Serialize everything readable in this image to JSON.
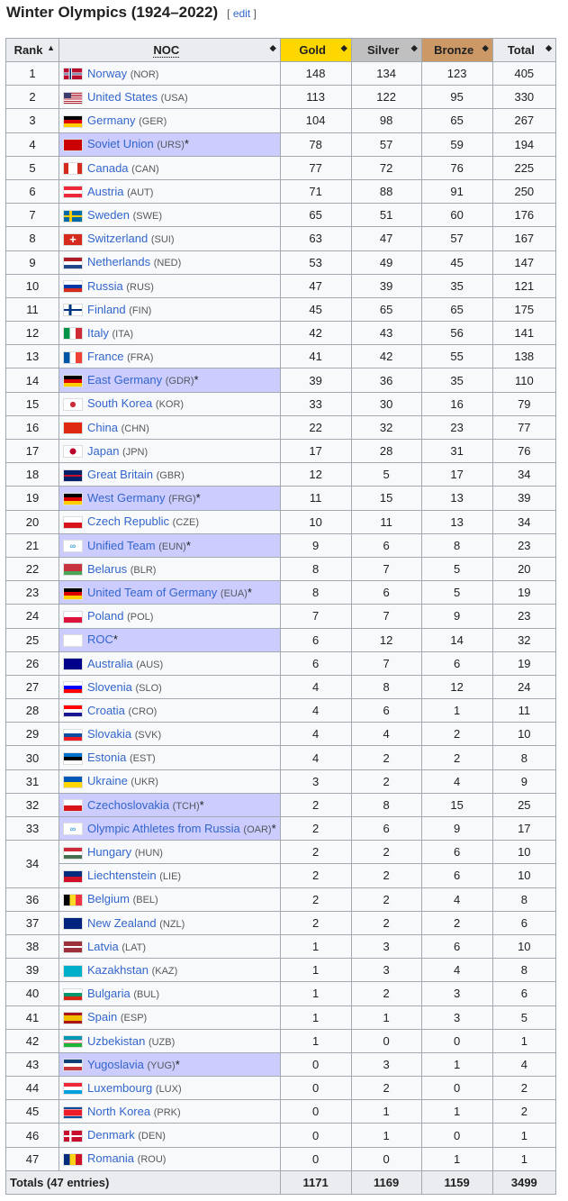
{
  "heading": {
    "title": "Winter Olympics (1924–2022)",
    "edit": "edit"
  },
  "headers": {
    "rank": "Rank",
    "noc": "NOC",
    "gold": "Gold",
    "silver": "Silver",
    "bronze": "Bronze",
    "total": "Total"
  },
  "colors": {
    "gold": "#ffd700",
    "silver": "#c0c0c0",
    "bronze": "#cc9966",
    "defunct": "#ccccff",
    "link": "#3366cc"
  },
  "rows": [
    {
      "rank": "1",
      "name": "Norway",
      "code": "(NOR)",
      "g": 148,
      "s": 134,
      "b": 123,
      "t": 405
    },
    {
      "rank": "2",
      "name": "United States",
      "code": "(USA)",
      "g": 113,
      "s": 122,
      "b": 95,
      "t": 330
    },
    {
      "rank": "3",
      "name": "Germany",
      "code": "(GER)",
      "g": 104,
      "s": 98,
      "b": 65,
      "t": 267
    },
    {
      "rank": "4",
      "name": "Soviet Union",
      "code": "(URS)",
      "g": 78,
      "s": 57,
      "b": 59,
      "t": 194,
      "defunct": true
    },
    {
      "rank": "5",
      "name": "Canada",
      "code": "(CAN)",
      "g": 77,
      "s": 72,
      "b": 76,
      "t": 225
    },
    {
      "rank": "6",
      "name": "Austria",
      "code": "(AUT)",
      "g": 71,
      "s": 88,
      "b": 91,
      "t": 250
    },
    {
      "rank": "7",
      "name": "Sweden",
      "code": "(SWE)",
      "g": 65,
      "s": 51,
      "b": 60,
      "t": 176
    },
    {
      "rank": "8",
      "name": "Switzerland",
      "code": "(SUI)",
      "g": 63,
      "s": 47,
      "b": 57,
      "t": 167
    },
    {
      "rank": "9",
      "name": "Netherlands",
      "code": "(NED)",
      "g": 53,
      "s": 49,
      "b": 45,
      "t": 147
    },
    {
      "rank": "10",
      "name": "Russia",
      "code": "(RUS)",
      "g": 47,
      "s": 39,
      "b": 35,
      "t": 121
    },
    {
      "rank": "11",
      "name": "Finland",
      "code": "(FIN)",
      "g": 45,
      "s": 65,
      "b": 65,
      "t": 175
    },
    {
      "rank": "12",
      "name": "Italy",
      "code": "(ITA)",
      "g": 42,
      "s": 43,
      "b": 56,
      "t": 141
    },
    {
      "rank": "13",
      "name": "France",
      "code": "(FRA)",
      "g": 41,
      "s": 42,
      "b": 55,
      "t": 138
    },
    {
      "rank": "14",
      "name": "East Germany",
      "code": "(GDR)",
      "g": 39,
      "s": 36,
      "b": 35,
      "t": 110,
      "defunct": true
    },
    {
      "rank": "15",
      "name": "South Korea",
      "code": "(KOR)",
      "g": 33,
      "s": 30,
      "b": 16,
      "t": 79
    },
    {
      "rank": "16",
      "name": "China",
      "code": "(CHN)",
      "g": 22,
      "s": 32,
      "b": 23,
      "t": 77
    },
    {
      "rank": "17",
      "name": "Japan",
      "code": "(JPN)",
      "g": 17,
      "s": 28,
      "b": 31,
      "t": 76
    },
    {
      "rank": "18",
      "name": "Great Britain",
      "code": "(GBR)",
      "g": 12,
      "s": 5,
      "b": 17,
      "t": 34
    },
    {
      "rank": "19",
      "name": "West Germany",
      "code": "(FRG)",
      "g": 11,
      "s": 15,
      "b": 13,
      "t": 39,
      "defunct": true
    },
    {
      "rank": "20",
      "name": "Czech Republic",
      "code": "(CZE)",
      "g": 10,
      "s": 11,
      "b": 13,
      "t": 34
    },
    {
      "rank": "21",
      "name": "Unified Team",
      "code": "(EUN)",
      "g": 9,
      "s": 6,
      "b": 8,
      "t": 23,
      "defunct": true
    },
    {
      "rank": "22",
      "name": "Belarus",
      "code": "(BLR)",
      "g": 8,
      "s": 7,
      "b": 5,
      "t": 20
    },
    {
      "rank": "23",
      "name": "United Team of Germany",
      "code": "(EUA)",
      "g": 8,
      "s": 6,
      "b": 5,
      "t": 19,
      "defunct": true
    },
    {
      "rank": "24",
      "name": "Poland",
      "code": "(POL)",
      "g": 7,
      "s": 7,
      "b": 9,
      "t": 23
    },
    {
      "rank": "25",
      "name": "ROC",
      "code": "",
      "g": 6,
      "s": 12,
      "b": 14,
      "t": 32,
      "defunct": true
    },
    {
      "rank": "26",
      "name": "Australia",
      "code": "(AUS)",
      "g": 6,
      "s": 7,
      "b": 6,
      "t": 19
    },
    {
      "rank": "27",
      "name": "Slovenia",
      "code": "(SLO)",
      "g": 4,
      "s": 8,
      "b": 12,
      "t": 24
    },
    {
      "rank": "28",
      "name": "Croatia",
      "code": "(CRO)",
      "g": 4,
      "s": 6,
      "b": 1,
      "t": 11
    },
    {
      "rank": "29",
      "name": "Slovakia",
      "code": "(SVK)",
      "g": 4,
      "s": 4,
      "b": 2,
      "t": 10
    },
    {
      "rank": "30",
      "name": "Estonia",
      "code": "(EST)",
      "g": 4,
      "s": 2,
      "b": 2,
      "t": 8
    },
    {
      "rank": "31",
      "name": "Ukraine",
      "code": "(UKR)",
      "g": 3,
      "s": 2,
      "b": 4,
      "t": 9
    },
    {
      "rank": "32",
      "name": "Czechoslovakia",
      "code": "(TCH)",
      "g": 2,
      "s": 8,
      "b": 15,
      "t": 25,
      "defunct": true
    },
    {
      "rank": "33",
      "name": "Olympic Athletes from Russia",
      "code": "(OAR)",
      "g": 2,
      "s": 6,
      "b": 9,
      "t": 17,
      "defunct": true
    },
    {
      "rank": "34",
      "name": "Hungary",
      "code": "(HUN)",
      "g": 2,
      "s": 2,
      "b": 6,
      "t": 10,
      "span": 2
    },
    {
      "rank": "",
      "name": "Liechtenstein",
      "code": "(LIE)",
      "g": 2,
      "s": 2,
      "b": 6,
      "t": 10,
      "skip": true
    },
    {
      "rank": "36",
      "name": "Belgium",
      "code": "(BEL)",
      "g": 2,
      "s": 2,
      "b": 4,
      "t": 8
    },
    {
      "rank": "37",
      "name": "New Zealand",
      "code": "(NZL)",
      "g": 2,
      "s": 2,
      "b": 2,
      "t": 6
    },
    {
      "rank": "38",
      "name": "Latvia",
      "code": "(LAT)",
      "g": 1,
      "s": 3,
      "b": 6,
      "t": 10
    },
    {
      "rank": "39",
      "name": "Kazakhstan",
      "code": "(KAZ)",
      "g": 1,
      "s": 3,
      "b": 4,
      "t": 8
    },
    {
      "rank": "40",
      "name": "Bulgaria",
      "code": "(BUL)",
      "g": 1,
      "s": 2,
      "b": 3,
      "t": 6
    },
    {
      "rank": "41",
      "name": "Spain",
      "code": "(ESP)",
      "g": 1,
      "s": 1,
      "b": 3,
      "t": 5
    },
    {
      "rank": "42",
      "name": "Uzbekistan",
      "code": "(UZB)",
      "g": 1,
      "s": 0,
      "b": 0,
      "t": 1
    },
    {
      "rank": "43",
      "name": "Yugoslavia",
      "code": "(YUG)",
      "g": 0,
      "s": 3,
      "b": 1,
      "t": 4,
      "defunct": true
    },
    {
      "rank": "44",
      "name": "Luxembourg",
      "code": "(LUX)",
      "g": 0,
      "s": 2,
      "b": 0,
      "t": 2
    },
    {
      "rank": "45",
      "name": "North Korea",
      "code": "(PRK)",
      "g": 0,
      "s": 1,
      "b": 1,
      "t": 2
    },
    {
      "rank": "46",
      "name": "Denmark",
      "code": "(DEN)",
      "g": 0,
      "s": 1,
      "b": 0,
      "t": 1
    },
    {
      "rank": "47",
      "name": "Romania",
      "code": "(ROU)",
      "g": 0,
      "s": 0,
      "b": 1,
      "t": 1
    }
  ],
  "totals": {
    "label": "Totals (47 entries)",
    "gold": 1171,
    "silver": 1169,
    "bronze": 1159,
    "total": 3499
  }
}
